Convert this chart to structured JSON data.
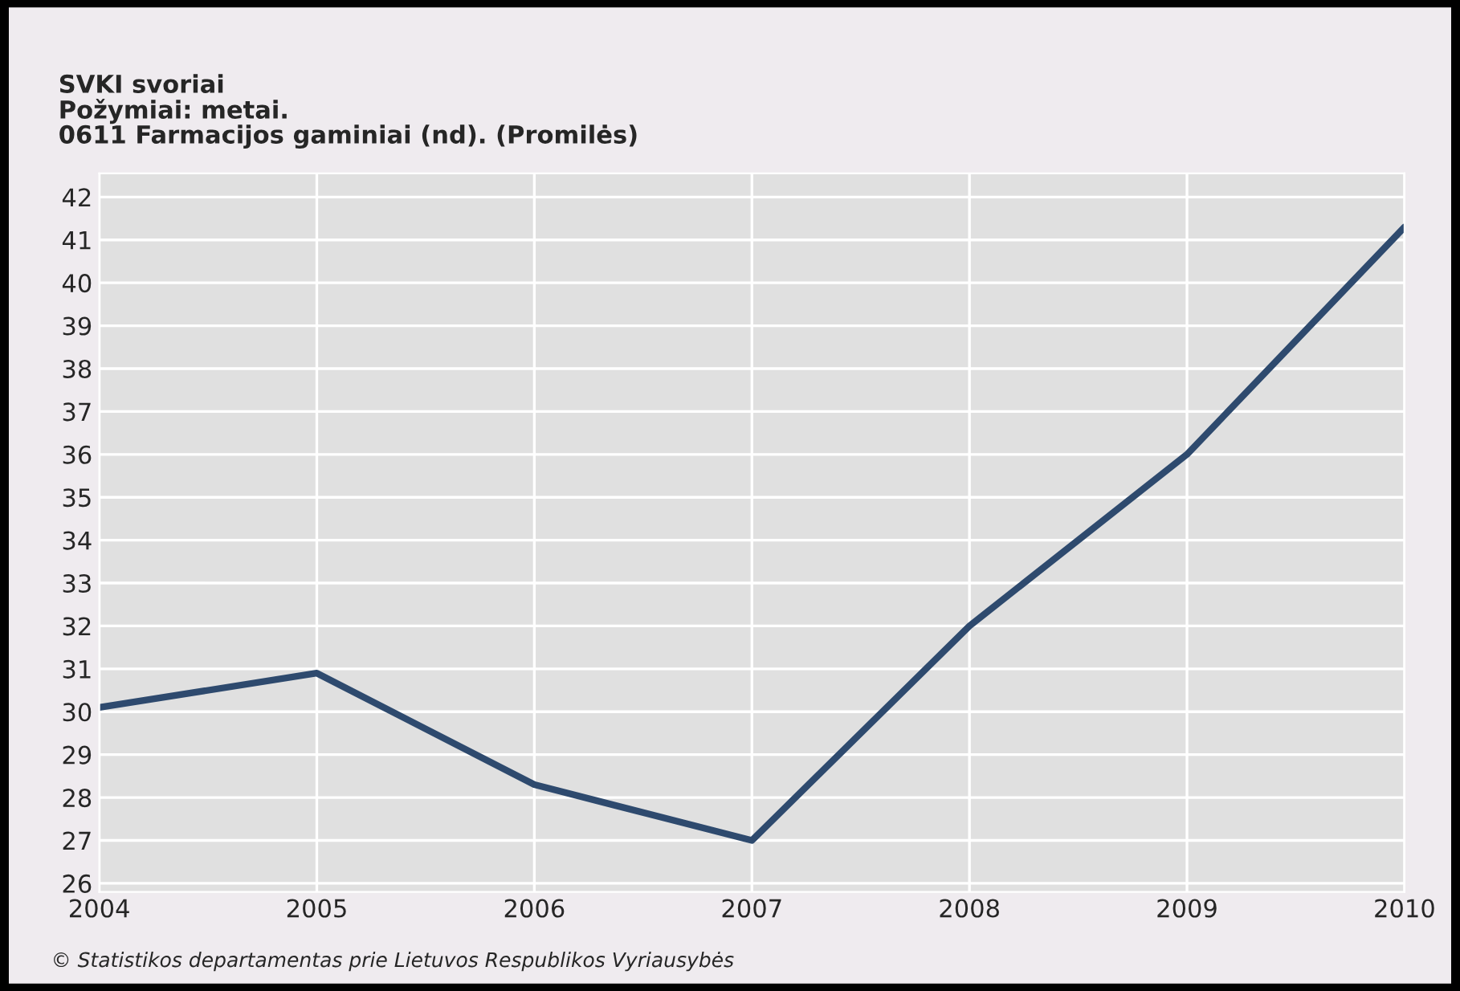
{
  "chart_data": {
    "type": "line",
    "title": "SVKI svoriai\nPožymiai: metai.\n0611 Farmacijos gaminiai (nd). (Promilės)",
    "x": [
      2004,
      2005,
      2006,
      2007,
      2008,
      2009,
      2010
    ],
    "series": [
      {
        "color": "#2e4a6e",
        "values": [
          30.1,
          30.9,
          28.3,
          27.0,
          32.0,
          36.0,
          41.3
        ]
      }
    ],
    "xlim": [
      2004,
      2010
    ],
    "xticks": [
      2004,
      2005,
      2006,
      2007,
      2008,
      2009,
      2010
    ],
    "ylim": [
      25.8,
      42.55
    ],
    "yticks": [
      26,
      27,
      28,
      29,
      30,
      31,
      32,
      33,
      34,
      35,
      36,
      37,
      38,
      39,
      40,
      41,
      42
    ],
    "grid": true,
    "marker": "none",
    "line_style": "solid",
    "annotations": [
      "© Statistikos departamentas prie Lietuvos Respublikos Vyriausybės"
    ]
  }
}
